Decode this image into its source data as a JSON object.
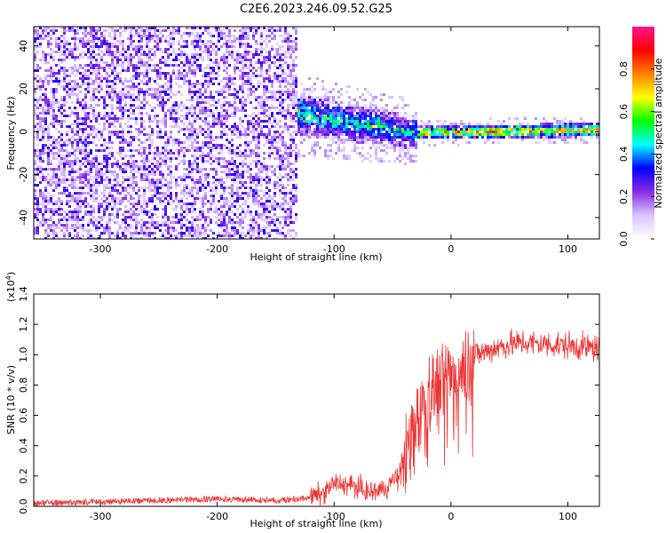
{
  "title": "C2E6.2023.246.09.52.G25",
  "chart_data": [
    {
      "type": "heatmap",
      "name": "spectrogram",
      "xlabel": "Height of straight line (km)",
      "ylabel": "Frequency (Hz)",
      "xlim": [
        -357,
        127
      ],
      "ylim": [
        -50,
        49
      ],
      "x_ticks": [
        -300,
        -200,
        -100,
        0,
        100
      ],
      "y_ticks": [
        -40,
        -20,
        0,
        20,
        40
      ],
      "colorbar": {
        "label": "Normalized spectral amplitude",
        "range": [
          0.0,
          1.0
        ],
        "ticks": [
          0.0,
          0.2,
          0.4,
          0.6,
          0.8
        ],
        "tick_labels": [
          "0.0",
          "0.2",
          "0.4",
          "0.6",
          "0.8"
        ],
        "colors": [
          "#ffffff",
          "#d9c6ff",
          "#8a2be2",
          "#0000ff",
          "#00ffff",
          "#00ff00",
          "#ffff00",
          "#ff8000",
          "#ff0000",
          "#ff1493"
        ]
      },
      "regions": [
        {
          "x_range": [
            -357,
            -133
          ],
          "description_level": "broadband noise",
          "amp_range": [
            0.02,
            0.35
          ],
          "freq_range": [
            -50,
            49
          ]
        },
        {
          "x_range": [
            -133,
            -30
          ],
          "center_hz": [
            9,
            0
          ],
          "halfwidth_hz": [
            8,
            6
          ],
          "amp_range": [
            0.3,
            0.6
          ]
        },
        {
          "x_range": [
            -30,
            127
          ],
          "center_hz": [
            0,
            1.5
          ],
          "halfwidth_hz": [
            2.5,
            2.5
          ],
          "amp_range": [
            0.5,
            0.95
          ]
        }
      ]
    },
    {
      "type": "line",
      "name": "snr",
      "xlabel": "Height of straight line (km)",
      "ylabel": "SNR (10 * v/v)",
      "y_multiplier": "(x10",
      "y_multiplier_exp": "4",
      "y_multiplier_close": ")",
      "xlim": [
        -357,
        127
      ],
      "ylim": [
        0,
        1.4
      ],
      "x_ticks": [
        -300,
        -200,
        -100,
        0,
        100
      ],
      "y_ticks": [
        0.0,
        0.2,
        0.4,
        0.6,
        0.8,
        1.0,
        1.2,
        1.4
      ],
      "y_tick_labels": [
        "0.0",
        "0.2",
        "0.4",
        "0.6",
        "0.8",
        "1.0",
        "1.2",
        "1.4"
      ],
      "x_tick_labels": [
        "-300",
        "-200",
        "-100",
        "0",
        "100"
      ],
      "color": "#ee3333",
      "series": [
        {
          "name": "SNR",
          "x": [
            -357,
            -300,
            -250,
            -200,
            -150,
            -125,
            -110,
            -100,
            -85,
            -70,
            -55,
            -45,
            -35,
            -28,
            -20,
            -10,
            0,
            10,
            20,
            30,
            40,
            60,
            80,
            100,
            127
          ],
          "y": [
            0.02,
            0.03,
            0.04,
            0.05,
            0.04,
            0.05,
            0.08,
            0.15,
            0.14,
            0.09,
            0.12,
            0.22,
            0.45,
            0.65,
            0.78,
            0.82,
            0.9,
            0.96,
            1.0,
            1.02,
            1.05,
            1.08,
            1.07,
            1.06,
            1.04
          ]
        }
      ]
    }
  ],
  "spectrogram_y_tick_labels": [
    "-40",
    "-20",
    "0",
    "20",
    "40"
  ],
  "spectrogram_x_tick_labels": [
    "-300",
    "-200",
    "-100",
    "0",
    "100"
  ]
}
